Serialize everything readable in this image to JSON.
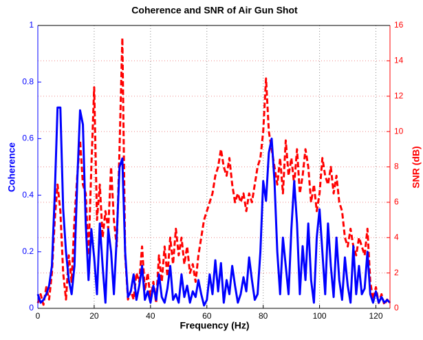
{
  "chart_data": {
    "type": "line",
    "title": "Coherence and SNR of Air Gun Shot",
    "xlabel": "Frequency (Hz)",
    "ylabel": "Coherence",
    "y2label": "SNR (dB)",
    "x": [
      0,
      1,
      2,
      3,
      4,
      5,
      6,
      7,
      8,
      9,
      10,
      11,
      12,
      13,
      14,
      15,
      16,
      17,
      18,
      19,
      20,
      21,
      22,
      23,
      24,
      25,
      26,
      27,
      28,
      29,
      30,
      31,
      32,
      33,
      34,
      35,
      36,
      37,
      38,
      39,
      40,
      41,
      42,
      43,
      44,
      45,
      46,
      47,
      48,
      49,
      50,
      51,
      52,
      53,
      54,
      55,
      56,
      57,
      58,
      59,
      60,
      61,
      62,
      63,
      64,
      65,
      66,
      67,
      68,
      69,
      70,
      71,
      72,
      73,
      74,
      75,
      76,
      77,
      78,
      79,
      80,
      81,
      82,
      83,
      84,
      85,
      86,
      87,
      88,
      89,
      90,
      91,
      92,
      93,
      94,
      95,
      96,
      97,
      98,
      99,
      100,
      101,
      102,
      103,
      104,
      105,
      106,
      107,
      108,
      109,
      110,
      111,
      112,
      113,
      114,
      115,
      116,
      117,
      118,
      119,
      120,
      121,
      122,
      123,
      124,
      125
    ],
    "series": [
      {
        "name": "Coherence",
        "color": "#0000ff",
        "axis": "y",
        "dashed": false,
        "values": [
          0.05,
          0.02,
          0.03,
          0.05,
          0.08,
          0.15,
          0.4,
          0.71,
          0.71,
          0.35,
          0.2,
          0.1,
          0.05,
          0.15,
          0.45,
          0.7,
          0.65,
          0.3,
          0.1,
          0.28,
          0.18,
          0.05,
          0.3,
          0.15,
          0.02,
          0.28,
          0.2,
          0.05,
          0.25,
          0.5,
          0.53,
          0.2,
          0.04,
          0.06,
          0.12,
          0.03,
          0.08,
          0.15,
          0.03,
          0.06,
          0.02,
          0.08,
          0.03,
          0.12,
          0.04,
          0.02,
          0.07,
          0.15,
          0.03,
          0.05,
          0.02,
          0.12,
          0.04,
          0.08,
          0.02,
          0.06,
          0.04,
          0.1,
          0.05,
          0.01,
          0.03,
          0.12,
          0.05,
          0.17,
          0.06,
          0.16,
          0.02,
          0.1,
          0.05,
          0.15,
          0.08,
          0.02,
          0.05,
          0.11,
          0.06,
          0.18,
          0.1,
          0.03,
          0.05,
          0.2,
          0.45,
          0.38,
          0.55,
          0.6,
          0.45,
          0.2,
          0.05,
          0.25,
          0.15,
          0.05,
          0.28,
          0.45,
          0.3,
          0.05,
          0.22,
          0.1,
          0.3,
          0.1,
          0.02,
          0.25,
          0.35,
          0.2,
          0.05,
          0.3,
          0.15,
          0.04,
          0.25,
          0.1,
          0.03,
          0.18,
          0.08,
          0.02,
          0.22,
          0.05,
          0.15,
          0.05,
          0.07,
          0.2,
          0.05,
          0.02,
          0.06,
          0.02,
          0.04,
          0.02,
          0.03,
          0.02
        ]
      },
      {
        "name": "SNR",
        "color": "#ff0000",
        "axis": "y2",
        "dashed": true,
        "values": [
          0.3,
          0.8,
          0.2,
          1.2,
          0.5,
          2,
          5,
          7,
          5.5,
          2,
          0.5,
          3,
          1.5,
          5,
          7.5,
          9.5,
          7,
          6.5,
          3,
          8,
          12.5,
          5,
          7,
          4,
          5.5,
          4.5,
          8,
          5,
          3.5,
          9,
          15.3,
          3,
          0.5,
          1,
          0.5,
          2,
          1.5,
          3.5,
          1,
          2,
          0.5,
          1.5,
          0.3,
          3,
          1.5,
          3.5,
          1.8,
          4,
          2.5,
          4.5,
          3,
          4,
          2.5,
          3.5,
          2,
          2.5,
          1.5,
          3,
          4,
          5,
          5.5,
          6,
          6.5,
          7.5,
          8,
          9,
          8,
          7.5,
          8.5,
          7,
          6,
          6.5,
          6,
          6.5,
          5.5,
          6.5,
          6,
          7,
          8,
          8.5,
          10,
          13,
          10,
          9,
          8,
          7,
          8.5,
          6.5,
          9.5,
          7.5,
          8.5,
          7,
          9,
          6.5,
          7.5,
          9,
          8,
          6,
          7,
          5.5,
          6.5,
          8.5,
          7.5,
          7,
          8,
          6.5,
          7.5,
          6,
          5.5,
          4,
          3.5,
          4.5,
          3.5,
          3,
          4,
          3.5,
          3,
          4.5,
          1.5,
          0.5,
          1.2,
          0.3,
          0.8,
          0.2,
          0.5,
          0.3
        ]
      }
    ],
    "xlim": [
      0,
      125
    ],
    "xticks": [
      0,
      20,
      40,
      60,
      80,
      100,
      120
    ],
    "ylim": [
      0,
      1
    ],
    "yticks": [
      0,
      0.2,
      0.4,
      0.6,
      0.8,
      1
    ],
    "y2lim": [
      0,
      16
    ],
    "y2ticks": [
      0,
      2,
      4,
      6,
      8,
      10,
      12,
      14,
      16
    ],
    "grid": true
  }
}
